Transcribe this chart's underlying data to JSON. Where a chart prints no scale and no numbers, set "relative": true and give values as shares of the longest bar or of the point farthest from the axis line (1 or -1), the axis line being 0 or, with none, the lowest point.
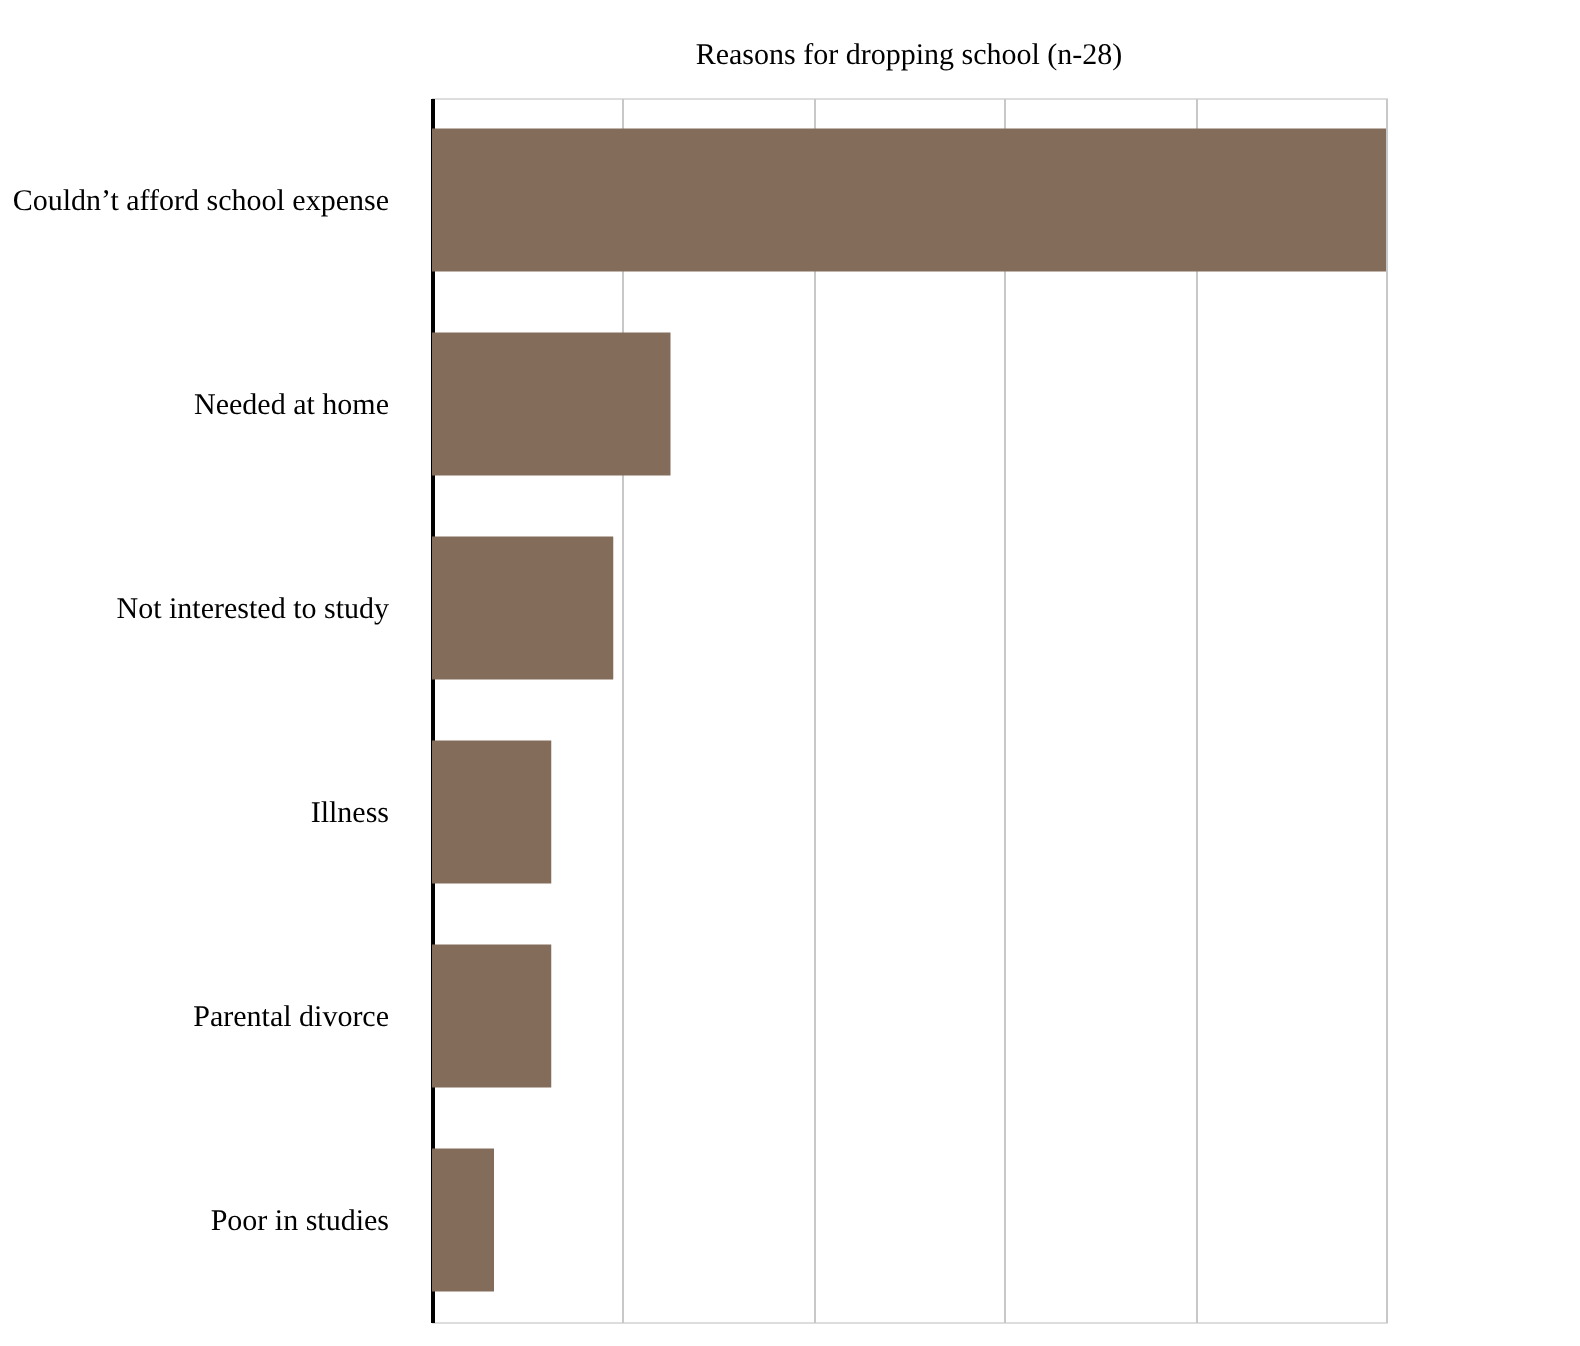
{
  "chart_data": {
    "type": "bar",
    "orientation": "horizontal",
    "relative": true,
    "title": "Reasons for dropping school (n-28)",
    "categories": [
      "Couldn’t afford school expense",
      "Needed at home",
      "Not interested to study",
      "Illness",
      "Parental divorce",
      "Poor in studies"
    ],
    "values": [
      1,
      0.25,
      0.19,
      0.125,
      0.125,
      0.065
    ],
    "color": "#846c5b",
    "grid": "x"
  }
}
